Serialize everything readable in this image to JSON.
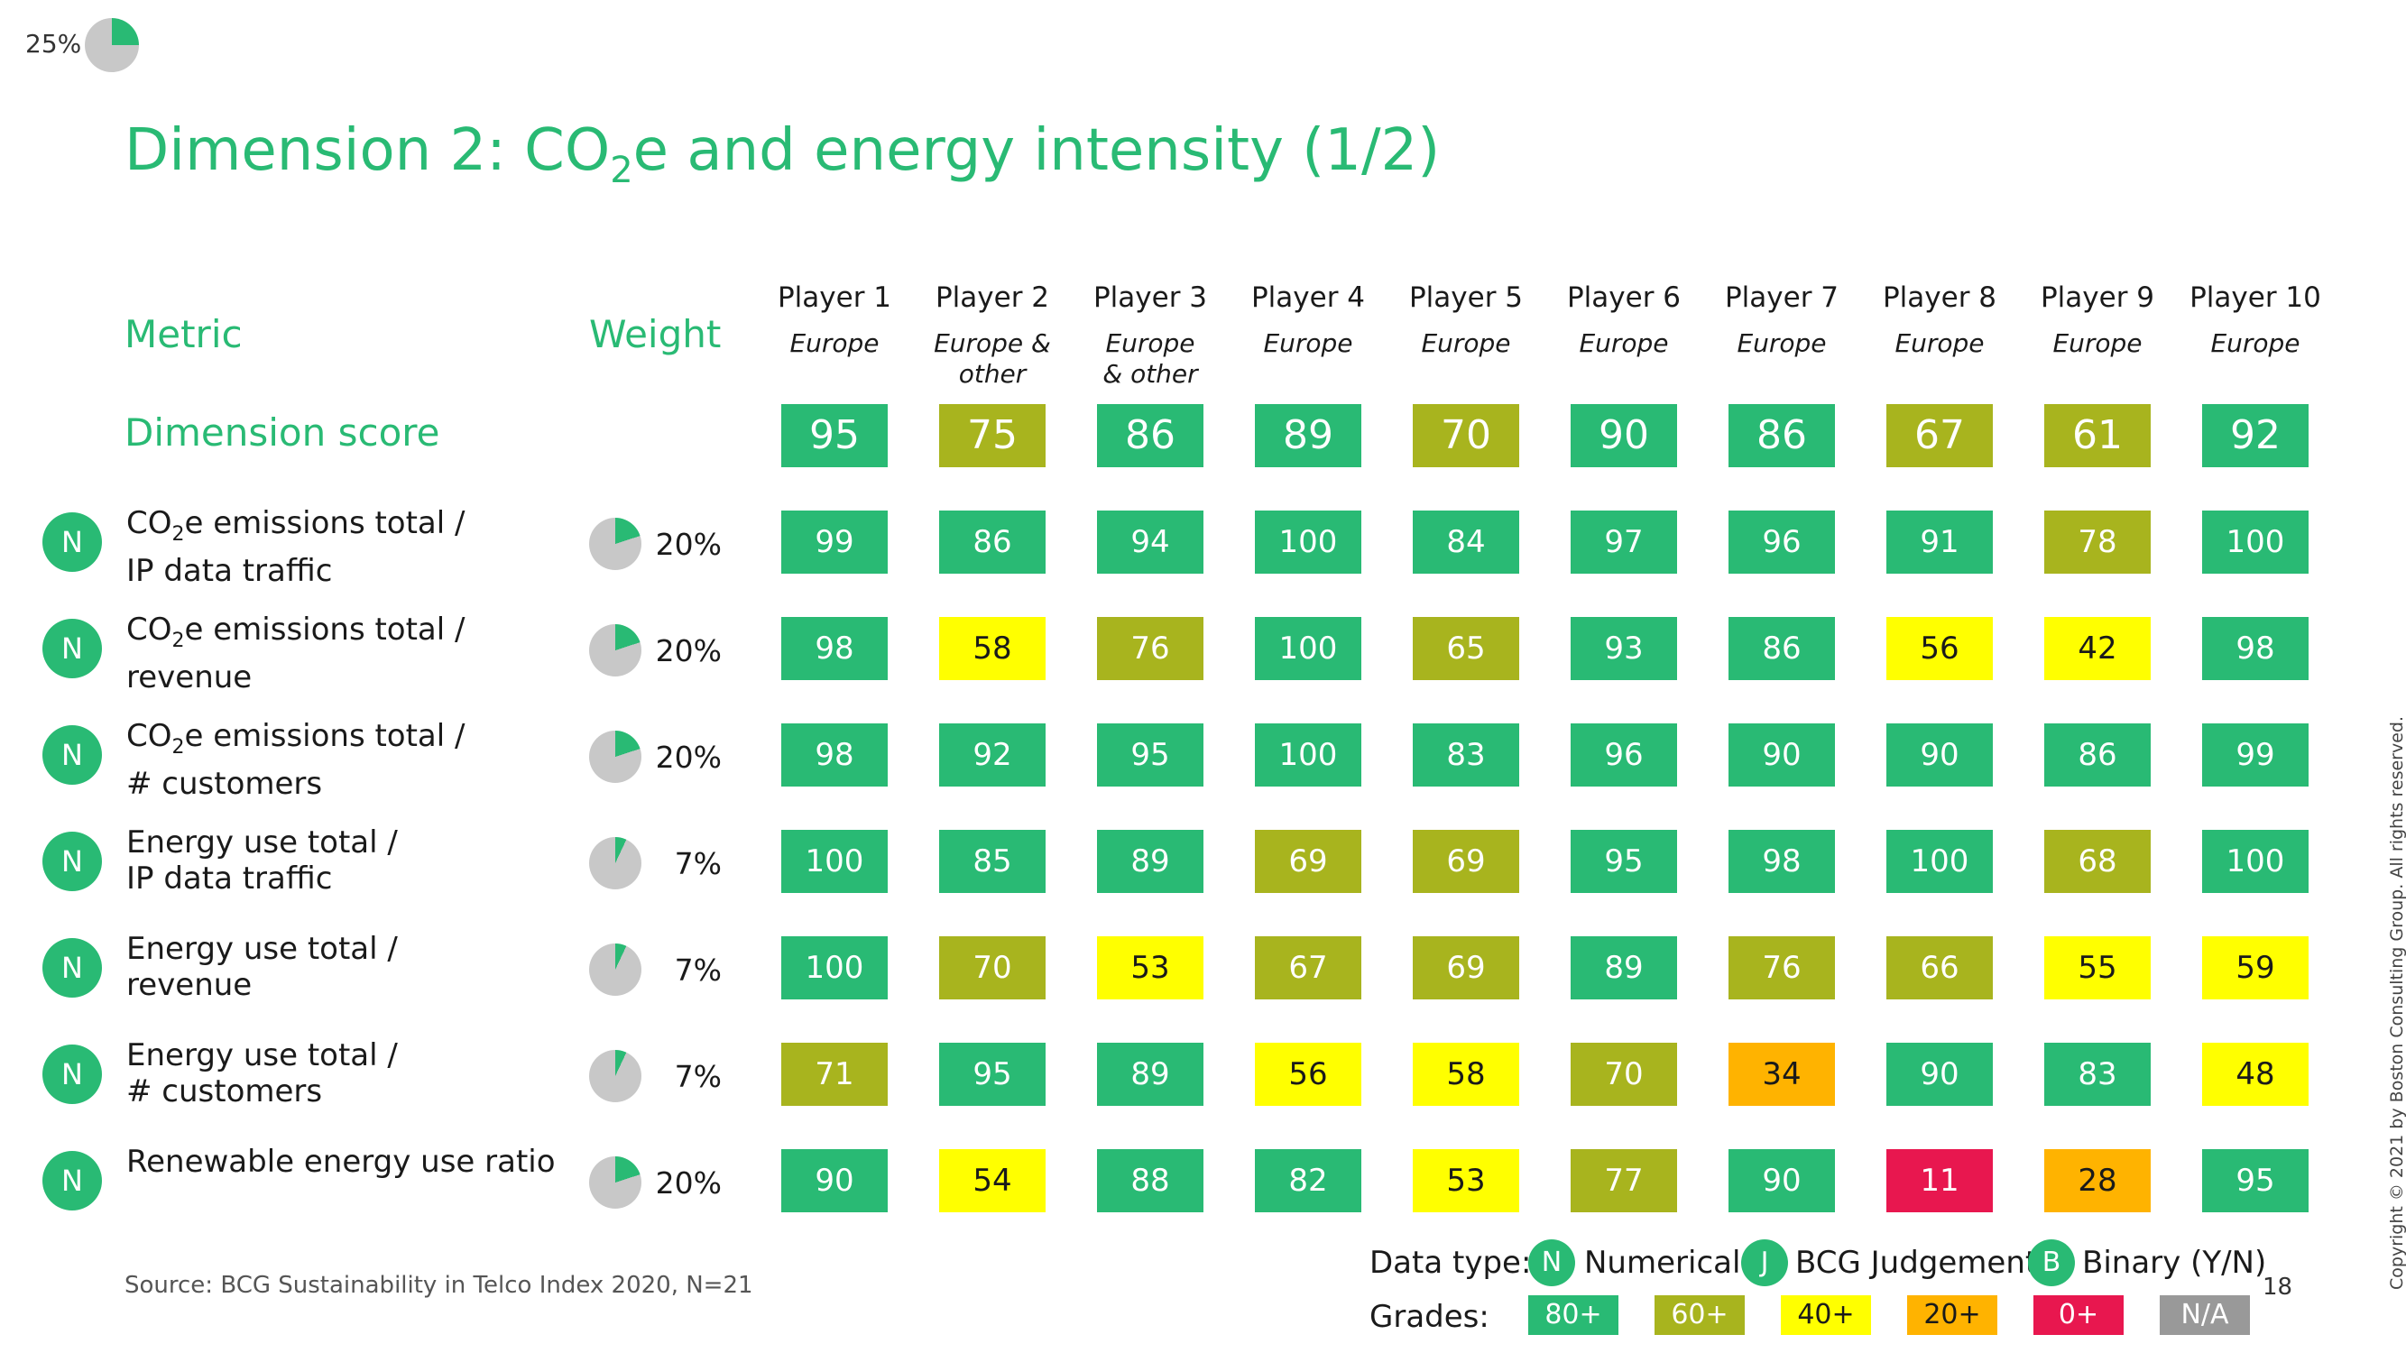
{
  "progress": {
    "label": "25%",
    "value": 0.25
  },
  "title": {
    "pre": "Dimension 2: CO",
    "sub": "2",
    "post": "e and energy intensity (1/2)"
  },
  "headers": {
    "metric": "Metric",
    "weight": "Weight",
    "dimension_score": "Dimension score"
  },
  "players": [
    {
      "name": "Player 1",
      "region": "Europe"
    },
    {
      "name": "Player 2",
      "region": "Europe &\nother"
    },
    {
      "name": "Player 3",
      "region": "Europe\n& other"
    },
    {
      "name": "Player 4",
      "region": "Europe"
    },
    {
      "name": "Player 5",
      "region": "Europe"
    },
    {
      "name": "Player 6",
      "region": "Europe"
    },
    {
      "name": "Player 7",
      "region": "Europe"
    },
    {
      "name": "Player 8",
      "region": "Europe"
    },
    {
      "name": "Player 9",
      "region": "Europe"
    },
    {
      "name": "Player 10",
      "region": "Europe"
    }
  ],
  "dimension_scores": [
    95,
    75,
    86,
    89,
    70,
    90,
    86,
    67,
    61,
    92
  ],
  "metrics": [
    {
      "type": "N",
      "line1_pre": "CO",
      "line1_sub": "2",
      "line1_post": "e emissions total /",
      "line2": "IP data traffic",
      "weight": "20%",
      "weight_value": 0.2,
      "scores": [
        99,
        86,
        94,
        100,
        84,
        97,
        96,
        91,
        78,
        100
      ]
    },
    {
      "type": "N",
      "line1_pre": "CO",
      "line1_sub": "2",
      "line1_post": "e emissions total /",
      "line2": "revenue",
      "weight": "20%",
      "weight_value": 0.2,
      "scores": [
        98,
        58,
        76,
        100,
        65,
        93,
        86,
        56,
        42,
        98
      ]
    },
    {
      "type": "N",
      "line1_pre": "CO",
      "line1_sub": "2",
      "line1_post": "e emissions total /",
      "line2": "# customers",
      "weight": "20%",
      "weight_value": 0.2,
      "scores": [
        98,
        92,
        95,
        100,
        83,
        96,
        90,
        90,
        86,
        99
      ]
    },
    {
      "type": "N",
      "line1_pre": "",
      "line1_sub": "",
      "line1_post": "Energy use total /",
      "line2": "IP data traffic",
      "weight": "7%",
      "weight_value": 0.07,
      "scores": [
        100,
        85,
        89,
        69,
        69,
        95,
        98,
        100,
        68,
        100
      ]
    },
    {
      "type": "N",
      "line1_pre": "",
      "line1_sub": "",
      "line1_post": "Energy use total /",
      "line2": "revenue",
      "weight": "7%",
      "weight_value": 0.07,
      "scores": [
        100,
        70,
        53,
        67,
        69,
        89,
        76,
        66,
        55,
        59
      ]
    },
    {
      "type": "N",
      "line1_pre": "",
      "line1_sub": "",
      "line1_post": "Energy use total /",
      "line2": "# customers",
      "weight": "7%",
      "weight_value": 0.07,
      "scores": [
        71,
        95,
        89,
        56,
        58,
        70,
        34,
        90,
        83,
        48
      ]
    },
    {
      "type": "N",
      "line1_pre": "",
      "line1_sub": "",
      "line1_post": "Renewable energy use ratio",
      "line2": "",
      "weight": "20%",
      "weight_value": 0.2,
      "scores": [
        90,
        54,
        88,
        82,
        53,
        77,
        90,
        11,
        28,
        95
      ]
    }
  ],
  "source": "Source: BCG Sustainability in Telco Index 2020, N=21",
  "data_type": {
    "label": "Data type:",
    "items": [
      {
        "badge": "N",
        "text": "Numerical"
      },
      {
        "badge": "J",
        "text": "BCG Judgement"
      },
      {
        "badge": "B",
        "text": "Binary (Y/N)"
      }
    ]
  },
  "grades": {
    "label": "Grades:",
    "items": [
      {
        "text": "80+",
        "color": "#29ba74"
      },
      {
        "text": "60+",
        "color": "#a8b41e"
      },
      {
        "text": "40+",
        "color": "#ffff00"
      },
      {
        "text": "20+",
        "color": "#ffb300"
      },
      {
        "text": "0+",
        "color": "#e8174f"
      },
      {
        "text": "N/A",
        "color": "#999999"
      }
    ]
  },
  "page_number": "18",
  "copyright": "Copyright © 2021 by Boston Consulting Group. All rights reserved.",
  "colors": {
    "green_title": "#29ba74",
    "grade_80": "#29ba74",
    "grade_60": "#a8b41e",
    "grade_40": "#ffff00",
    "grade_20": "#ffb300",
    "grade_0": "#e8174f",
    "pie_bg": "#c8c8c8"
  }
}
